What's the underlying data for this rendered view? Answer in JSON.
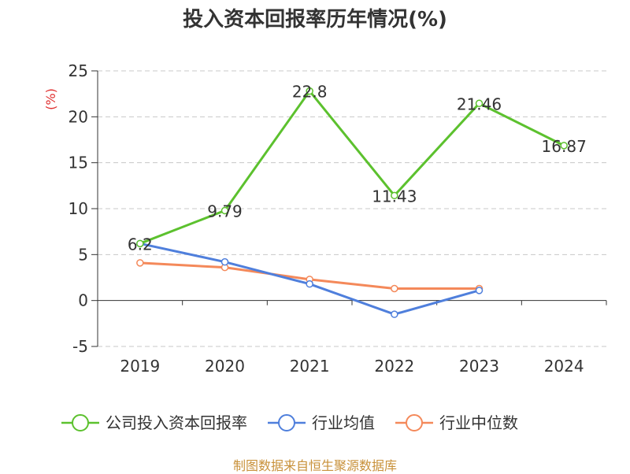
{
  "title": "投入资本回报率历年情况(%)",
  "source": "制图数据来自恒生聚源数据库",
  "chart_data": {
    "type": "line",
    "ylabel": "(%)",
    "ylim": [
      -5,
      25
    ],
    "yticks": [
      -5,
      0,
      5,
      10,
      15,
      20,
      25
    ],
    "categories": [
      "2019",
      "2020",
      "2021",
      "2022",
      "2023",
      "2024"
    ],
    "series": [
      {
        "name": "公司投入资本回报率",
        "color": "#5cc12e",
        "values": [
          6.2,
          9.79,
          22.8,
          11.43,
          21.46,
          16.87
        ],
        "labels": [
          "6.2",
          "9.79",
          "22.8",
          "11.43",
          "21.46",
          "16.87"
        ]
      },
      {
        "name": "行业均值",
        "color": "#4f7fdc",
        "values": [
          6.2,
          4.2,
          1.8,
          -1.5,
          1.1,
          null
        ]
      },
      {
        "name": "行业中位数",
        "color": "#f4895a",
        "values": [
          4.1,
          3.6,
          2.3,
          1.3,
          1.3,
          null
        ]
      }
    ],
    "grid": true,
    "legend": "bottom"
  }
}
